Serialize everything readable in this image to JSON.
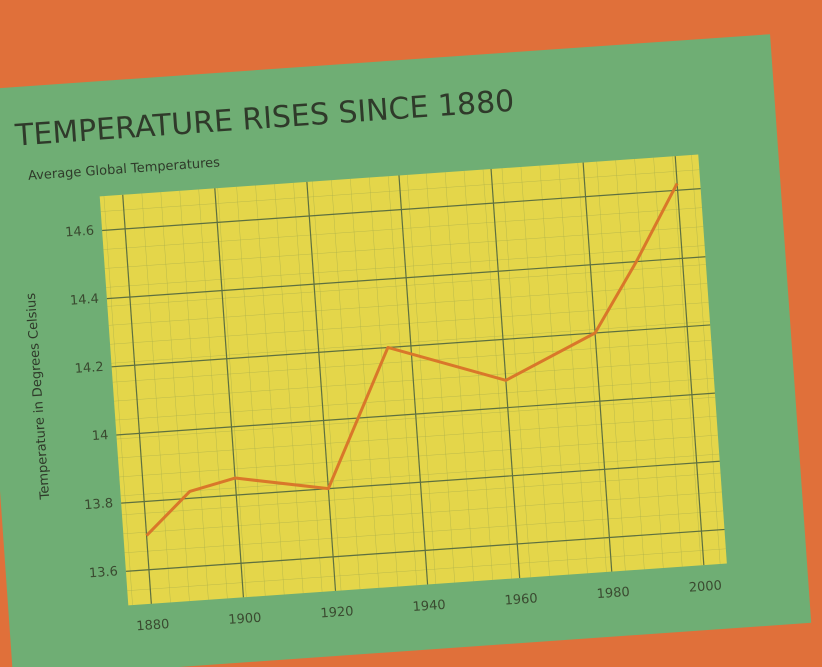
{
  "chart_data": {
    "type": "line",
    "title": "TEMPERATURE RISES SINCE 1880",
    "subtitle": "Average Global Temperatures",
    "y_label": "Temperature in Degrees Celsius",
    "x": [
      1880,
      1890,
      1900,
      1920,
      1935,
      1960,
      1980,
      1990,
      2000
    ],
    "values": [
      13.7,
      13.82,
      13.85,
      13.8,
      14.2,
      14.08,
      14.2,
      14.4,
      14.62
    ],
    "color": "#d9772a",
    "xlim": [
      1875,
      2005
    ],
    "xticks": [
      1880,
      1900,
      1920,
      1940,
      1960,
      1980,
      2000
    ],
    "ylim": [
      13.5,
      14.7
    ],
    "yticks": [
      13.6,
      13.8,
      14.0,
      14.2,
      14.4,
      14.6
    ],
    "grid": true
  }
}
